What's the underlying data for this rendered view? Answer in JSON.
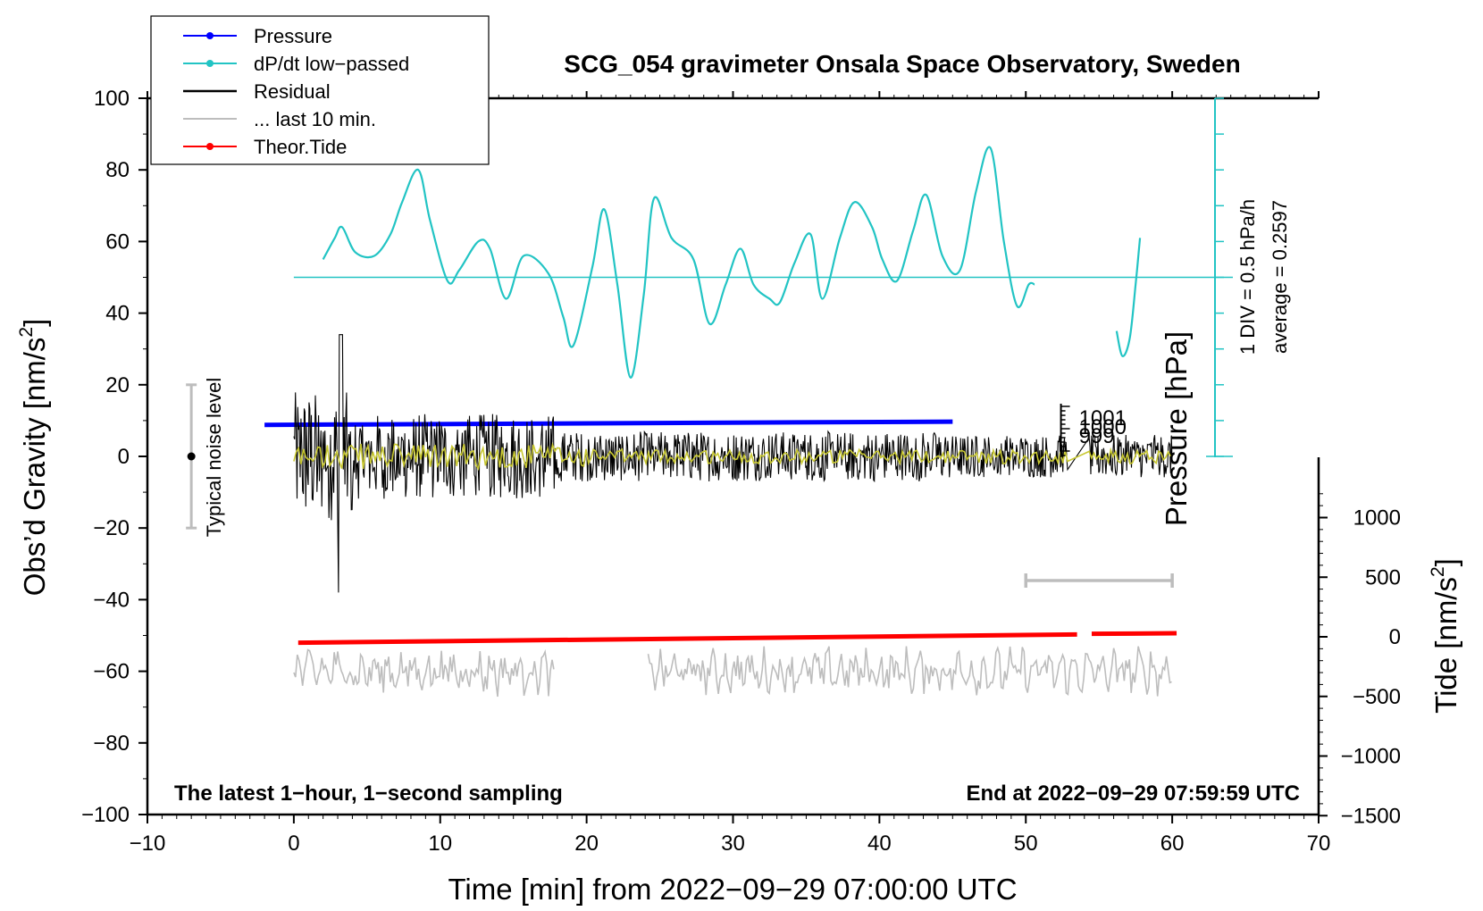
{
  "chart_data": {
    "type": "line",
    "title": "SCG_054 gravimeter Onsala Space Observatory, Sweden",
    "xlabel": "Time [min] from 2022−09−29 07:00:00 UTC",
    "ylabel": "Obs’d Gravity [nm/s",
    "ylabel_sup": "2",
    "ylabel_end": "]",
    "y2label": "Tide [nm/s",
    "y2label_sup": "2",
    "y2label_end": "]",
    "y3label": "Pressure [hPa]",
    "xlim": [
      -10,
      70
    ],
    "ylim": [
      -100,
      100
    ],
    "y2lim": [
      -1500,
      1500
    ],
    "x_ticks": [
      "−10",
      "0",
      "10",
      "20",
      "30",
      "40",
      "50",
      "60",
      "70"
    ],
    "y_ticks": [
      "100",
      "80",
      "60",
      "40",
      "20",
      "0",
      "−20",
      "−40",
      "−60",
      "−80",
      "−100"
    ],
    "y2_ticks": [
      "1000",
      "500",
      "0",
      "−500",
      "−1000",
      "−1500"
    ],
    "pressure_ticks": [
      "1001",
      "1000",
      "999"
    ],
    "dpdt_scale": "1 DIV = 0.5 hPa/h",
    "dpdt_average": "average = 0.2597",
    "bottom_left_note": "The latest 1−hour, 1−second sampling",
    "bottom_right_note": "End at 2022−09−29 07:59:59 UTC",
    "noise_label": "Typical noise level",
    "noise_level": [
      -20,
      20
    ],
    "legend": [
      {
        "label": "Pressure",
        "color": "#0000ff",
        "marker": true
      },
      {
        "label": "dP/dt low−passed",
        "color": "#22c4c4",
        "marker": true
      },
      {
        "label": "Residual",
        "color": "#000000",
        "marker": false
      },
      {
        "label": "... last 10 min.",
        "color": "#bdbdbd",
        "marker": false
      },
      {
        "label": "Theor.Tide",
        "color": "#ff0000",
        "marker": true
      }
    ],
    "series": [
      {
        "name": "dP/dt low-passed",
        "color": "#22c4c4",
        "baseline": 50,
        "segments": [
          {
            "x": [
              2,
              2.8,
              3.3,
              4.2,
              5.5,
              6.6,
              7.4,
              8.5,
              9.3,
              10.5,
              11.3,
              12.6,
              13.4,
              14.5,
              15.7,
              17.4,
              18.4,
              19.1,
              20.4,
              21.2,
              22.1,
              23.0,
              23.9,
              24.6,
              25.8,
              27.3,
              28.4,
              29.5,
              30.5,
              31.4,
              32.5,
              33.2,
              34.2,
              35.3,
              36.1,
              37.3,
              38.3,
              39.5,
              40.2,
              41.2,
              42.3,
              43.2,
              44.3,
              45.5,
              46.6,
              47.6,
              48.5,
              49.4,
              50.2,
              50.6
            ],
            "y": [
              55,
              61,
              64,
              57,
              56,
              62,
              71,
              80,
              66,
              49,
              52,
              60,
              58,
              44,
              56,
              51,
              39,
              31,
              53,
              69,
              48,
              22,
              45,
              72,
              61,
              55,
              37,
              48,
              58,
              48,
              44,
              43,
              54,
              62,
              44,
              61,
              71,
              64,
              55,
              49,
              63,
              73,
              56,
              52,
              74,
              86,
              60,
              42,
              48,
              48
            ]
          },
          {
            "x": [
              56.2,
              56.6,
              57.1,
              57.5,
              57.8
            ],
            "y": [
              35,
              28,
              33,
              48,
              61
            ]
          }
        ]
      },
      {
        "name": "Pressure",
        "color": "#0000ff",
        "segments": [
          {
            "x": [
              -2,
              45
            ],
            "y": [
              8.8,
              9.7
            ]
          }
        ]
      },
      {
        "name": "Theor.Tide",
        "color": "#ff0000",
        "axis": "y2",
        "segments": [
          {
            "x": [
              0.3,
              53.5
            ],
            "y": [
              -50,
              20
            ]
          },
          {
            "x": [
              54.5,
              60.3
            ],
            "y": [
              25,
              30
            ]
          }
        ]
      },
      {
        "name": "Residual",
        "color": "#000000",
        "amplitude_range": [
          -38,
          34
        ]
      },
      {
        "name": "... last 10 min.",
        "color": "#bdbdbd",
        "offset": -60
      }
    ]
  }
}
